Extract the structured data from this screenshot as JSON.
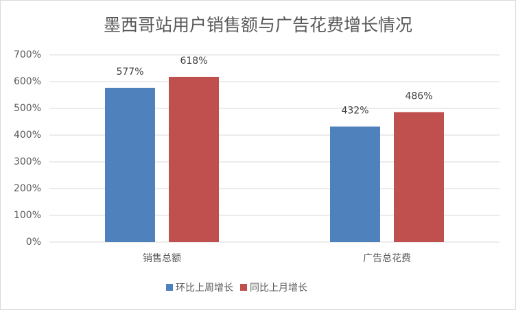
{
  "chart_data": {
    "type": "bar",
    "title": "墨西哥站用户销售额与广告花费增长情况",
    "categories": [
      "销售总额",
      "广告总花费"
    ],
    "series": [
      {
        "name": "环比上周增长",
        "color": "#4f81bd",
        "values": [
          577,
          432
        ],
        "value_labels": [
          "577%",
          "432%"
        ]
      },
      {
        "name": "同比上月增长",
        "color": "#c0504d",
        "values": [
          618,
          486
        ],
        "value_labels": [
          "618%",
          "486%"
        ]
      }
    ],
    "ylim": [
      0,
      700
    ],
    "yticks": [
      {
        "value": 0,
        "label": "0%"
      },
      {
        "value": 100,
        "label": "100%"
      },
      {
        "value": 200,
        "label": "200%"
      },
      {
        "value": 300,
        "label": "300%"
      },
      {
        "value": 400,
        "label": "400%"
      },
      {
        "value": 500,
        "label": "500%"
      },
      {
        "value": 600,
        "label": "600%"
      },
      {
        "value": 700,
        "label": "700%"
      }
    ],
    "grid": true,
    "legend": "bottom"
  }
}
